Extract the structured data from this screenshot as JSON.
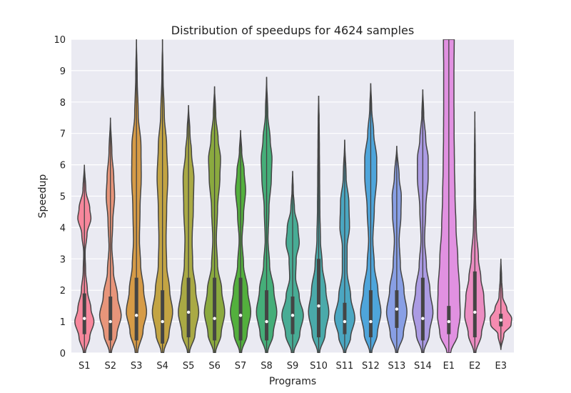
{
  "chart_data": {
    "type": "violin",
    "title": "Distribution of speedups for 4624 samples",
    "xlabel": "Programs",
    "ylabel": "Speedup",
    "ylim": [
      0,
      10
    ],
    "yticks": [
      0,
      1,
      2,
      3,
      4,
      5,
      6,
      7,
      8,
      9,
      10
    ],
    "grid": true,
    "background": "#EAEAF2",
    "categories": [
      "S1",
      "S2",
      "S3",
      "S4",
      "S5",
      "S6",
      "S7",
      "S8",
      "S9",
      "S10",
      "S11",
      "S12",
      "S13",
      "S14",
      "E1",
      "E2",
      "E3"
    ],
    "series": [
      {
        "category": "S1",
        "color": "#F7879C",
        "min": 0,
        "max": 6.0,
        "density": [
          [
            0,
            0.08
          ],
          [
            0.5,
            0.45
          ],
          [
            1.0,
            0.8
          ],
          [
            1.4,
            0.55
          ],
          [
            2.0,
            0.25
          ],
          [
            2.6,
            0.1
          ],
          [
            3.2,
            0.06
          ],
          [
            3.8,
            0.22
          ],
          [
            4.3,
            0.55
          ],
          [
            4.6,
            0.45
          ],
          [
            5.2,
            0.12
          ],
          [
            6.0,
            0
          ]
        ],
        "q1": 0.6,
        "q3": 1.9,
        "median": 1.1
      },
      {
        "category": "S2",
        "color": "#E8957A",
        "min": 0,
        "max": 7.5,
        "density": [
          [
            0,
            0.08
          ],
          [
            0.6,
            0.55
          ],
          [
            1.2,
            0.9
          ],
          [
            1.8,
            0.6
          ],
          [
            2.6,
            0.25
          ],
          [
            3.4,
            0.12
          ],
          [
            4.2,
            0.2
          ],
          [
            5.0,
            0.35
          ],
          [
            5.6,
            0.28
          ],
          [
            6.4,
            0.12
          ],
          [
            7.5,
            0
          ]
        ],
        "q1": 0.4,
        "q3": 1.8,
        "median": 1.0
      },
      {
        "category": "S3",
        "color": "#D69B47",
        "min": 0,
        "max": 10,
        "density": [
          [
            0,
            0.1
          ],
          [
            0.7,
            0.55
          ],
          [
            1.3,
            0.85
          ],
          [
            2.0,
            0.6
          ],
          [
            2.8,
            0.35
          ],
          [
            3.6,
            0.25
          ],
          [
            4.6,
            0.3
          ],
          [
            5.6,
            0.4
          ],
          [
            6.6,
            0.38
          ],
          [
            7.6,
            0.15
          ],
          [
            8.8,
            0.06
          ],
          [
            10,
            0
          ]
        ],
        "q1": 0.4,
        "q3": 2.4,
        "median": 1.2
      },
      {
        "category": "S4",
        "color": "#C3A443",
        "min": 0,
        "max": 10,
        "density": [
          [
            0,
            0.1
          ],
          [
            0.6,
            0.55
          ],
          [
            1.3,
            0.85
          ],
          [
            2.0,
            0.6
          ],
          [
            2.8,
            0.35
          ],
          [
            3.6,
            0.3
          ],
          [
            4.6,
            0.35
          ],
          [
            5.6,
            0.45
          ],
          [
            6.6,
            0.35
          ],
          [
            7.6,
            0.15
          ],
          [
            8.8,
            0.05
          ],
          [
            10,
            0
          ]
        ],
        "q1": 0.3,
        "q3": 2.0,
        "median": 1.0
      },
      {
        "category": "S5",
        "color": "#AAAA44",
        "min": 0,
        "max": 7.9,
        "density": [
          [
            0,
            0.08
          ],
          [
            0.6,
            0.55
          ],
          [
            1.3,
            0.85
          ],
          [
            2.0,
            0.6
          ],
          [
            2.8,
            0.35
          ],
          [
            3.6,
            0.3
          ],
          [
            4.6,
            0.4
          ],
          [
            5.6,
            0.45
          ],
          [
            6.4,
            0.25
          ],
          [
            7.0,
            0.12
          ],
          [
            7.9,
            0
          ]
        ],
        "q1": 0.5,
        "q3": 2.4,
        "median": 1.3
      },
      {
        "category": "S6",
        "color": "#8BAA3F",
        "min": 0,
        "max": 8.5,
        "density": [
          [
            0,
            0.08
          ],
          [
            0.6,
            0.55
          ],
          [
            1.3,
            0.85
          ],
          [
            2.0,
            0.6
          ],
          [
            2.8,
            0.25
          ],
          [
            3.6,
            0.15
          ],
          [
            4.6,
            0.25
          ],
          [
            5.6,
            0.45
          ],
          [
            6.2,
            0.5
          ],
          [
            6.8,
            0.3
          ],
          [
            7.6,
            0.1
          ],
          [
            8.5,
            0
          ]
        ],
        "q1": 0.4,
        "q3": 2.4,
        "median": 1.1
      },
      {
        "category": "S7",
        "color": "#53B03D",
        "min": 0,
        "max": 7.1,
        "density": [
          [
            0,
            0.08
          ],
          [
            0.6,
            0.55
          ],
          [
            1.3,
            0.85
          ],
          [
            2.0,
            0.6
          ],
          [
            2.8,
            0.25
          ],
          [
            3.6,
            0.12
          ],
          [
            4.4,
            0.25
          ],
          [
            5.2,
            0.42
          ],
          [
            5.8,
            0.3
          ],
          [
            6.4,
            0.1
          ],
          [
            7.1,
            0
          ]
        ],
        "q1": 0.4,
        "q3": 2.4,
        "median": 1.2
      },
      {
        "category": "S8",
        "color": "#45AE79",
        "min": 0,
        "max": 8.8,
        "density": [
          [
            0,
            0.08
          ],
          [
            0.6,
            0.55
          ],
          [
            1.3,
            0.85
          ],
          [
            2.0,
            0.6
          ],
          [
            2.8,
            0.25
          ],
          [
            3.6,
            0.12
          ],
          [
            4.6,
            0.2
          ],
          [
            5.6,
            0.4
          ],
          [
            6.2,
            0.45
          ],
          [
            6.8,
            0.3
          ],
          [
            7.6,
            0.1
          ],
          [
            8.8,
            0
          ]
        ],
        "q1": 0.4,
        "q3": 2.0,
        "median": 1.0
      },
      {
        "category": "S9",
        "color": "#48AC95",
        "min": 0,
        "max": 5.8,
        "density": [
          [
            0,
            0.1
          ],
          [
            0.6,
            0.6
          ],
          [
            1.2,
            0.9
          ],
          [
            1.8,
            0.55
          ],
          [
            2.4,
            0.25
          ],
          [
            3.0,
            0.3
          ],
          [
            3.5,
            0.55
          ],
          [
            4.0,
            0.45
          ],
          [
            4.6,
            0.15
          ],
          [
            5.2,
            0.05
          ],
          [
            5.8,
            0
          ]
        ],
        "q1": 0.6,
        "q3": 1.8,
        "median": 1.2
      },
      {
        "category": "S10",
        "color": "#4AAAAA",
        "min": 0,
        "max": 8.2,
        "density": [
          [
            0,
            0.08
          ],
          [
            0.6,
            0.55
          ],
          [
            1.3,
            0.85
          ],
          [
            2.0,
            0.6
          ],
          [
            2.8,
            0.3
          ],
          [
            3.6,
            0.15
          ],
          [
            4.6,
            0.1
          ],
          [
            5.6,
            0.08
          ],
          [
            6.6,
            0.06
          ],
          [
            7.4,
            0.04
          ],
          [
            8.2,
            0
          ]
        ],
        "q1": 0.5,
        "q3": 3.0,
        "median": 1.5
      },
      {
        "category": "S11",
        "color": "#4BA7C2",
        "min": 0,
        "max": 6.8,
        "density": [
          [
            0,
            0.08
          ],
          [
            0.5,
            0.5
          ],
          [
            1.1,
            0.85
          ],
          [
            1.8,
            0.5
          ],
          [
            2.6,
            0.2
          ],
          [
            3.4,
            0.2
          ],
          [
            4.0,
            0.4
          ],
          [
            4.8,
            0.35
          ],
          [
            5.6,
            0.12
          ],
          [
            6.8,
            0
          ]
        ],
        "q1": 0.6,
        "q3": 1.6,
        "median": 1.0
      },
      {
        "category": "S12",
        "color": "#4EA5DB",
        "min": 0,
        "max": 8.6,
        "density": [
          [
            0,
            0.08
          ],
          [
            0.6,
            0.55
          ],
          [
            1.3,
            0.85
          ],
          [
            2.0,
            0.6
          ],
          [
            2.8,
            0.3
          ],
          [
            3.6,
            0.18
          ],
          [
            4.6,
            0.3
          ],
          [
            5.6,
            0.5
          ],
          [
            6.2,
            0.5
          ],
          [
            7.0,
            0.25
          ],
          [
            7.8,
            0.08
          ],
          [
            8.6,
            0
          ]
        ],
        "q1": 0.5,
        "q3": 2.0,
        "median": 1.0
      },
      {
        "category": "S13",
        "color": "#889FE5",
        "min": 0,
        "max": 6.6,
        "density": [
          [
            0,
            0.08
          ],
          [
            0.6,
            0.55
          ],
          [
            1.3,
            0.85
          ],
          [
            2.0,
            0.6
          ],
          [
            2.8,
            0.3
          ],
          [
            3.6,
            0.2
          ],
          [
            4.4,
            0.35
          ],
          [
            5.0,
            0.38
          ],
          [
            5.6,
            0.2
          ],
          [
            6.6,
            0
          ]
        ],
        "q1": 0.8,
        "q3": 2.0,
        "median": 1.4
      },
      {
        "category": "S14",
        "color": "#AB9BE3",
        "min": 0,
        "max": 8.4,
        "density": [
          [
            0,
            0.08
          ],
          [
            0.6,
            0.55
          ],
          [
            1.3,
            0.85
          ],
          [
            2.0,
            0.6
          ],
          [
            2.8,
            0.3
          ],
          [
            3.6,
            0.15
          ],
          [
            4.6,
            0.25
          ],
          [
            5.6,
            0.45
          ],
          [
            6.2,
            0.45
          ],
          [
            6.8,
            0.25
          ],
          [
            7.6,
            0.08
          ],
          [
            8.4,
            0
          ]
        ],
        "q1": 0.4,
        "q3": 2.4,
        "median": 1.1
      },
      {
        "category": "E1",
        "color": "#E191E1",
        "min": 0,
        "max": 10,
        "density": [
          [
            0,
            0.15
          ],
          [
            0.6,
            0.75
          ],
          [
            1.2,
            0.95
          ],
          [
            2.0,
            0.9
          ],
          [
            3.0,
            0.75
          ],
          [
            4.0,
            0.6
          ],
          [
            5.0,
            0.52
          ],
          [
            6.0,
            0.47
          ],
          [
            7.0,
            0.44
          ],
          [
            8.0,
            0.43
          ],
          [
            9.0,
            0.43
          ],
          [
            10,
            0.45
          ]
        ],
        "q1": 0.6,
        "q3": 1.5,
        "median": 1.0
      },
      {
        "category": "E2",
        "color": "#EB8DC2",
        "min": 0,
        "max": 7.7,
        "density": [
          [
            0,
            0.08
          ],
          [
            0.6,
            0.55
          ],
          [
            1.2,
            0.85
          ],
          [
            1.8,
            0.75
          ],
          [
            2.4,
            0.5
          ],
          [
            3.0,
            0.3
          ],
          [
            4.0,
            0.12
          ],
          [
            5.0,
            0.06
          ],
          [
            6.0,
            0.04
          ],
          [
            7.7,
            0
          ]
        ],
        "q1": 0.5,
        "q3": 2.6,
        "median": 1.3
      },
      {
        "category": "E3",
        "color": "#F58BB0",
        "min": 0.1,
        "max": 3.0,
        "density": [
          [
            0.1,
            0
          ],
          [
            0.6,
            0.25
          ],
          [
            0.9,
            0.85
          ],
          [
            1.1,
            0.9
          ],
          [
            1.4,
            0.5
          ],
          [
            1.8,
            0.15
          ],
          [
            2.4,
            0.06
          ],
          [
            3.0,
            0
          ]
        ],
        "q1": 0.85,
        "q3": 1.25,
        "median": 1.05
      }
    ]
  }
}
